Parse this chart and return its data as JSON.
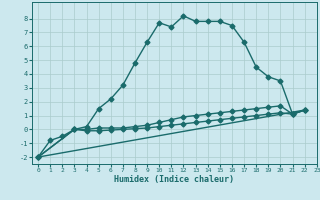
{
  "xlabel": "Humidex (Indice chaleur)",
  "background_color": "#cce8ee",
  "grid_color": "#aacccc",
  "line_color": "#1a6b6b",
  "xlim": [
    -0.5,
    23
  ],
  "ylim": [
    -2.5,
    9.2
  ],
  "xticks": [
    0,
    1,
    2,
    3,
    4,
    5,
    6,
    7,
    8,
    9,
    10,
    11,
    12,
    13,
    14,
    15,
    16,
    17,
    18,
    19,
    20,
    21,
    22,
    23
  ],
  "yticks": [
    -2,
    -1,
    0,
    1,
    2,
    3,
    4,
    5,
    6,
    7,
    8
  ],
  "line1_x": [
    0,
    1,
    2,
    3,
    4,
    5,
    6,
    7,
    8,
    9,
    10,
    11,
    12,
    13,
    14,
    15,
    16,
    17,
    18,
    19,
    20,
    21,
    22
  ],
  "line1_y": [
    -2.0,
    -0.8,
    -0.5,
    0.0,
    0.2,
    1.5,
    2.2,
    3.2,
    4.8,
    6.3,
    7.7,
    7.4,
    8.2,
    7.8,
    7.8,
    7.8,
    7.5,
    6.3,
    4.5,
    3.8,
    3.5,
    1.1,
    1.4
  ],
  "line2_x": [
    0,
    3,
    4,
    5,
    6,
    7,
    8,
    9,
    10,
    11,
    12,
    13,
    14,
    15,
    16,
    17,
    18,
    19,
    20,
    21,
    22
  ],
  "line2_y": [
    -2.0,
    0.0,
    0.0,
    0.1,
    0.1,
    0.1,
    0.2,
    0.3,
    0.5,
    0.7,
    0.9,
    1.0,
    1.1,
    1.2,
    1.3,
    1.4,
    1.5,
    1.6,
    1.7,
    1.1,
    1.4
  ],
  "line3_x": [
    0,
    3,
    4,
    5,
    6,
    7,
    8,
    9,
    10,
    11,
    12,
    13,
    14,
    15,
    16,
    17,
    18,
    19,
    20,
    21,
    22
  ],
  "line3_y": [
    -2.0,
    0.0,
    -0.1,
    -0.1,
    -0.05,
    0.0,
    0.05,
    0.1,
    0.2,
    0.3,
    0.4,
    0.5,
    0.6,
    0.7,
    0.8,
    0.9,
    1.0,
    1.1,
    1.2,
    1.1,
    1.4
  ],
  "line4_x": [
    0,
    22
  ],
  "line4_y": [
    -2.0,
    1.4
  ],
  "marker": "D",
  "markersize": 2.5,
  "linewidth": 1.0
}
